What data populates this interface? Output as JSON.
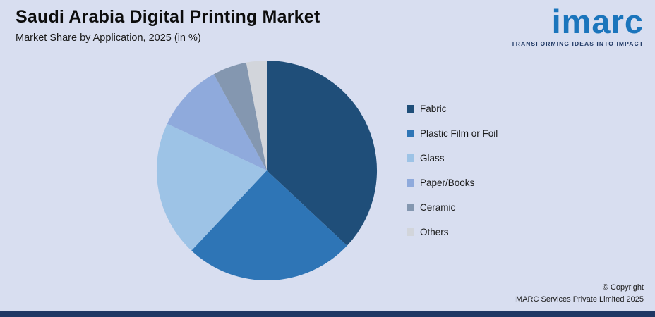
{
  "page": {
    "title": "Saudi Arabia Digital Printing Market",
    "subtitle": "Market Share by Application, 2025 (in %)"
  },
  "logo": {
    "wordmark": "imarc",
    "tagline": "TRANSFORMING IDEAS INTO IMPACT",
    "wordmark_color": "#1b75bc",
    "tagline_color": "#1f3864"
  },
  "footer": {
    "copyright_line1": "© Copyright",
    "copyright_line2": "IMARC Services Private Limited 2025"
  },
  "colors": {
    "background": "#d8def0",
    "bottom_bar": "#203864"
  },
  "chart_data": {
    "type": "pie",
    "title": "Saudi Arabia Digital Printing Market",
    "subtitle": "Market Share by Application, 2025 (in %)",
    "unit": "%",
    "legend_position": "right",
    "start_angle": "top",
    "direction": "clockwise",
    "slices": [
      {
        "label": "Fabric",
        "value": 37,
        "color": "#1f4e79"
      },
      {
        "label": "Plastic Film or Foil",
        "value": 25,
        "color": "#2e75b6"
      },
      {
        "label": "Glass",
        "value": 20,
        "color": "#9dc3e6"
      },
      {
        "label": "Paper/Books",
        "value": 10,
        "color": "#8faadc"
      },
      {
        "label": "Ceramic",
        "value": 5,
        "color": "#8497b0"
      },
      {
        "label": "Others",
        "value": 3,
        "color": "#d2d5db"
      }
    ]
  }
}
